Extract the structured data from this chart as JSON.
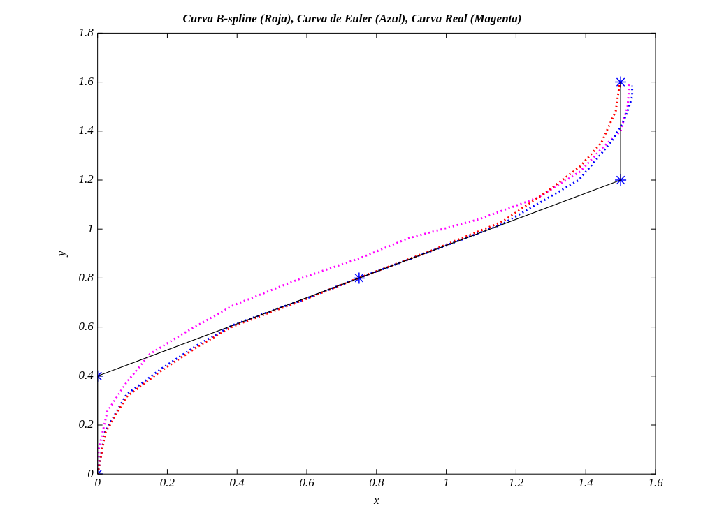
{
  "chart_data": {
    "type": "line",
    "title": "Curva B-spline (Roja), Curva de Euler (Azul), Curva Real (Magenta)",
    "xlabel": "x",
    "ylabel": "y",
    "xlim": [
      0,
      1.6
    ],
    "xticks": [
      0,
      0.2,
      0.4,
      0.6,
      0.8,
      1,
      1.2,
      1.4,
      1.6
    ],
    "ylim": [
      0,
      1.8
    ],
    "yticks": [
      0,
      0.2,
      0.4,
      0.6,
      0.8,
      1,
      1.2,
      1.4,
      1.6,
      1.8
    ],
    "grid": false,
    "legend": false,
    "series": [
      {
        "color": "#000000",
        "line_style": "solid",
        "marker": "none",
        "x": [
          0,
          0,
          0.75,
          1.5,
          1.5
        ],
        "values": [
          0,
          0.4,
          0.8,
          1.2,
          1.6
        ]
      },
      {
        "color": "#ff0000",
        "line_style": "dotted",
        "marker": "none",
        "x": [
          0,
          0.022,
          0.083,
          0.185,
          0.287,
          0.388,
          0.51,
          0.59,
          0.748,
          0.957,
          1.16,
          1.283,
          1.384,
          1.445,
          1.486,
          1.498
        ],
        "values": [
          0,
          0.168,
          0.315,
          0.424,
          0.52,
          0.603,
          0.668,
          0.71,
          0.8,
          0.912,
          1.03,
          1.147,
          1.256,
          1.353,
          1.482,
          1.6
        ]
      },
      {
        "color": "#0000ff",
        "line_style": "dotted",
        "marker": "none",
        "x": [
          0,
          0.022,
          0.083,
          0.185,
          0.287,
          0.388,
          0.51,
          0.59,
          0.748,
          0.957,
          1.16,
          1.283,
          1.38,
          1.44,
          1.48,
          1.506,
          1.52,
          1.533,
          1.533
        ],
        "values": [
          0,
          0.175,
          0.325,
          0.432,
          0.527,
          0.608,
          0.672,
          0.712,
          0.8,
          0.91,
          1.02,
          1.12,
          1.2,
          1.3,
          1.37,
          1.435,
          1.48,
          1.541,
          1.585
        ]
      },
      {
        "color": "#ff00ff",
        "line_style": "dotted",
        "marker": "none",
        "x": [
          0,
          0.003,
          0.028,
          0.083,
          0.15,
          0.252,
          0.388,
          0.49,
          0.585,
          0.754,
          0.89,
          1.093,
          1.262,
          1.384,
          1.45,
          1.5,
          1.52,
          1.525
        ],
        "values": [
          0,
          0.1,
          0.256,
          0.374,
          0.49,
          0.579,
          0.688,
          0.746,
          0.8,
          0.882,
          0.962,
          1.04,
          1.128,
          1.235,
          1.335,
          1.4,
          1.5,
          1.594
        ]
      },
      {
        "type": "scatter",
        "color": "#0000ff",
        "marker": "cross",
        "x": [
          0,
          0,
          0.75,
          1.5,
          1.5
        ],
        "values": [
          0,
          0.4,
          0.8,
          1.2,
          1.6
        ]
      }
    ]
  }
}
